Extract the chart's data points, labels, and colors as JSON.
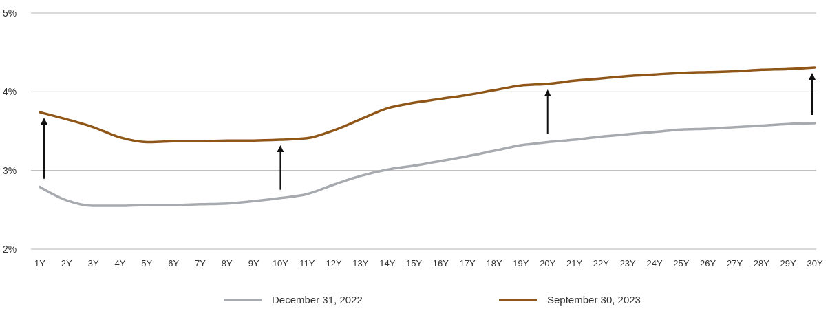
{
  "chart_data": {
    "type": "line",
    "categories": [
      "1Y",
      "2Y",
      "3Y",
      "4Y",
      "5Y",
      "6Y",
      "7Y",
      "8Y",
      "9Y",
      "10Y",
      "11Y",
      "12Y",
      "13Y",
      "14Y",
      "15Y",
      "16Y",
      "17Y",
      "18Y",
      "19Y",
      "20Y",
      "21Y",
      "22Y",
      "23Y",
      "24Y",
      "25Y",
      "26Y",
      "27Y",
      "28Y",
      "29Y",
      "30Y"
    ],
    "series": [
      {
        "name": "December 31, 2022",
        "color": "#a7abb0",
        "values": [
          2.79,
          2.62,
          2.55,
          2.55,
          2.56,
          2.56,
          2.57,
          2.58,
          2.61,
          2.65,
          2.7,
          2.82,
          2.93,
          3.01,
          3.06,
          3.12,
          3.18,
          3.25,
          3.32,
          3.36,
          3.39,
          3.43,
          3.46,
          3.49,
          3.52,
          3.53,
          3.55,
          3.57,
          3.59,
          3.6
        ]
      },
      {
        "name": "September 30, 2023",
        "color": "#8f5618",
        "values": [
          3.74,
          3.65,
          3.55,
          3.42,
          3.36,
          3.37,
          3.37,
          3.38,
          3.38,
          3.39,
          3.41,
          3.51,
          3.65,
          3.79,
          3.86,
          3.91,
          3.96,
          4.02,
          4.08,
          4.1,
          4.14,
          4.17,
          4.2,
          4.22,
          4.24,
          4.25,
          4.26,
          4.28,
          4.29,
          4.31
        ]
      }
    ],
    "ylim": [
      2,
      5
    ],
    "yticks": [
      {
        "value": 2,
        "label": "2%"
      },
      {
        "value": 3,
        "label": "3%"
      },
      {
        "value": 4,
        "label": "4%"
      },
      {
        "value": 5,
        "label": "5%"
      }
    ],
    "grid": "y",
    "legend": "bottom",
    "marker": "none",
    "line_style": "solid"
  }
}
